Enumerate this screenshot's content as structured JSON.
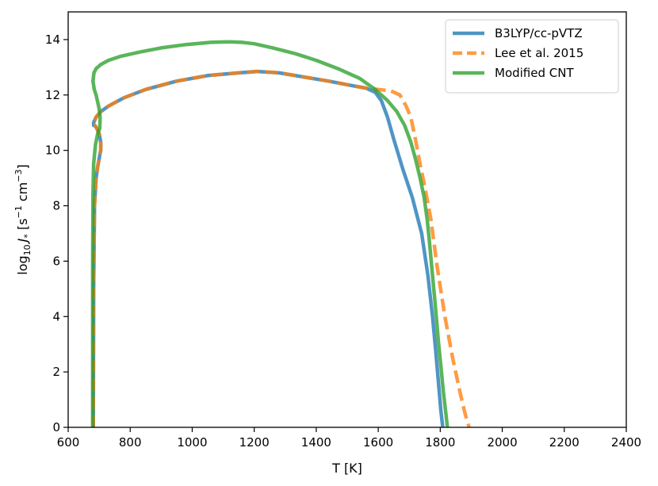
{
  "chart_data": {
    "type": "line",
    "xlabel": "T [K]",
    "ylabel": {
      "prefix": "log",
      "sub": "10",
      "sym": "J",
      "symsub": "*",
      "unit_open": " [s",
      "exp1": "−1",
      "unit_mid": " cm",
      "exp2": "−3",
      "unit_close": "]"
    },
    "xlim": [
      600,
      2400
    ],
    "ylim": [
      0,
      15
    ],
    "xticks": [
      600,
      800,
      1000,
      1200,
      1400,
      1600,
      1800,
      2000,
      2200,
      2400
    ],
    "yticks": [
      0,
      2,
      4,
      6,
      8,
      10,
      12,
      14
    ],
    "grid": false,
    "legend_position": "top-right",
    "series": [
      {
        "name": "B3LYP/cc-pVTZ",
        "color": "#1f77b4",
        "style": "solid",
        "x": [
          681,
          682,
          685,
          690,
          695,
          700,
          703,
          705,
          705,
          700,
          692,
          686,
          682,
          682,
          690,
          705,
          730,
          780,
          850,
          950,
          1050,
          1150,
          1210,
          1280,
          1360,
          1440,
          1510,
          1560,
          1590,
          1610,
          1630,
          1650,
          1680,
          1710,
          1740,
          1760,
          1775,
          1785,
          1795,
          1802,
          1808
        ],
        "y": [
          0.0,
          5.0,
          8.0,
          9.0,
          9.4,
          9.7,
          9.9,
          10.0,
          10.3,
          10.6,
          10.8,
          10.9,
          10.9,
          11.0,
          11.2,
          11.4,
          11.6,
          11.9,
          12.2,
          12.5,
          12.7,
          12.8,
          12.85,
          12.8,
          12.65,
          12.5,
          12.35,
          12.25,
          12.1,
          11.8,
          11.2,
          10.4,
          9.3,
          8.3,
          7.0,
          5.5,
          4.0,
          2.8,
          1.5,
          0.6,
          0.0
        ]
      },
      {
        "name": "Lee et al. 2015",
        "color": "#ff7f0e",
        "style": "dashed",
        "x": [
          681,
          682,
          685,
          690,
          695,
          700,
          703,
          705,
          705,
          700,
          692,
          686,
          682,
          682,
          690,
          705,
          730,
          780,
          850,
          950,
          1050,
          1150,
          1210,
          1280,
          1360,
          1440,
          1510,
          1560,
          1600,
          1640,
          1670,
          1690,
          1705,
          1720,
          1735,
          1750,
          1770,
          1790,
          1815,
          1840,
          1865,
          1880,
          1893
        ],
        "y": [
          0.0,
          5.0,
          8.0,
          9.0,
          9.4,
          9.7,
          9.9,
          10.0,
          10.3,
          10.6,
          10.8,
          10.9,
          10.9,
          11.0,
          11.2,
          11.4,
          11.6,
          11.9,
          12.2,
          12.5,
          12.7,
          12.8,
          12.85,
          12.8,
          12.65,
          12.5,
          12.35,
          12.25,
          12.2,
          12.15,
          12.0,
          11.6,
          11.2,
          10.4,
          9.5,
          8.7,
          7.5,
          5.8,
          4.0,
          2.5,
          1.2,
          0.5,
          0.0
        ]
      },
      {
        "name": "Modified CNT",
        "color": "#2ca02c",
        "style": "solid",
        "x": [
          679,
          679,
          679,
          680,
          682,
          688,
          695,
          702,
          703,
          700,
          694,
          690,
          684,
          680,
          683,
          690,
          705,
          730,
          770,
          830,
          900,
          980,
          1060,
          1120,
          1160,
          1200,
          1260,
          1330,
          1400,
          1470,
          1540,
          1590,
          1630,
          1660,
          1685,
          1705,
          1720,
          1735,
          1748,
          1758,
          1766,
          1774,
          1784,
          1794,
          1803,
          1810,
          1816,
          1820,
          1823
        ],
        "y": [
          0.0,
          3.0,
          6.0,
          8.5,
          9.5,
          10.2,
          10.6,
          10.8,
          11.2,
          11.5,
          11.8,
          12.0,
          12.2,
          12.5,
          12.8,
          12.95,
          13.1,
          13.25,
          13.4,
          13.55,
          13.7,
          13.82,
          13.9,
          13.92,
          13.9,
          13.85,
          13.7,
          13.5,
          13.25,
          12.95,
          12.6,
          12.2,
          11.8,
          11.4,
          10.9,
          10.3,
          9.7,
          9.0,
          8.3,
          7.5,
          6.6,
          5.6,
          4.4,
          3.1,
          2.1,
          1.3,
          0.7,
          0.3,
          0.0
        ]
      }
    ]
  }
}
